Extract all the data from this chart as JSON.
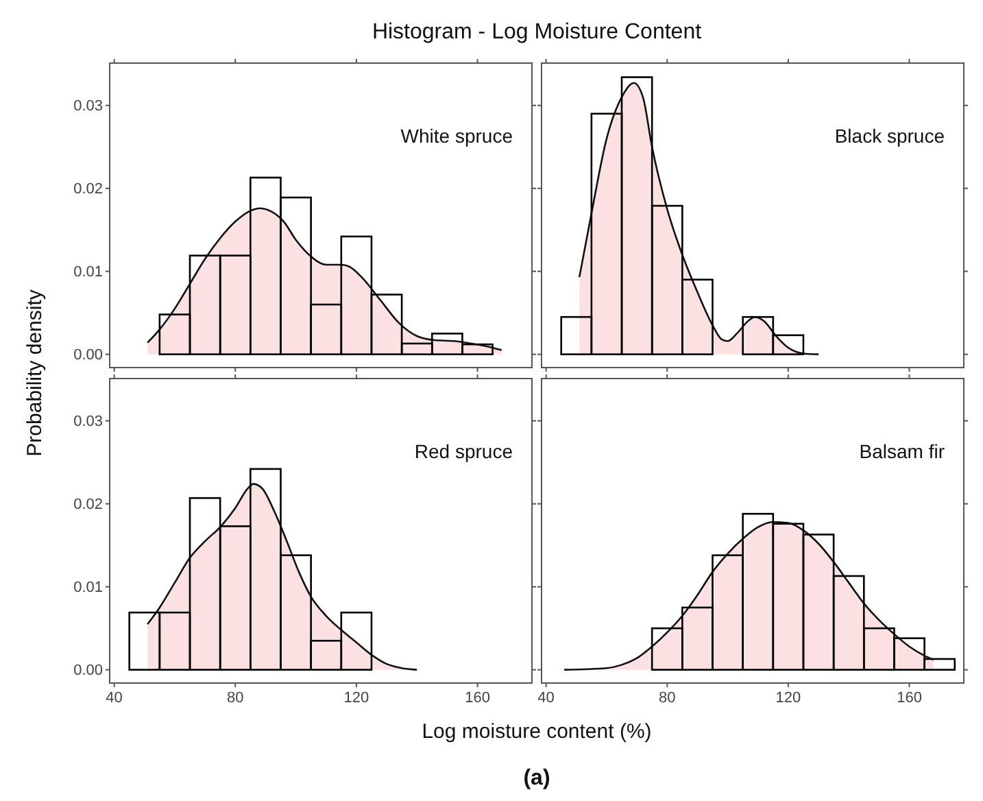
{
  "chart_data": [
    {
      "type": "histogram",
      "title": "Histogram - Log Moisture Content",
      "ylabel": "Probability density",
      "annotations": [
        "White spruce"
      ],
      "tick_labels": "y",
      "color": "#000000",
      "bins": [
        55,
        65,
        75,
        85,
        95,
        105,
        115,
        125,
        135,
        145,
        155,
        165
      ],
      "values": [
        0.0048,
        0.0119,
        0.0119,
        0.0213,
        0.0189,
        0.006,
        0.0142,
        0.0072,
        0.0013,
        0.0025,
        0.0012
      ],
      "series": [
        {
          "type": "area",
          "color": "#fbe1e1",
          "x": [
            51,
            55,
            60,
            65,
            70,
            75,
            80,
            85,
            88,
            92,
            96,
            100,
            105,
            110,
            115,
            118,
            122,
            128,
            134,
            140,
            146,
            152,
            158,
            165,
            168
          ],
          "values": [
            0.0014,
            0.003,
            0.0055,
            0.0085,
            0.0115,
            0.014,
            0.016,
            0.0173,
            0.0176,
            0.0172,
            0.016,
            0.0138,
            0.0118,
            0.0108,
            0.0108,
            0.0105,
            0.0092,
            0.0065,
            0.0038,
            0.0022,
            0.0017,
            0.0016,
            0.0013,
            0.0008,
            0.0005
          ]
        }
      ],
      "xlim": [
        38.5,
        178
      ],
      "ylim": [
        -0.0016,
        0.0351
      ],
      "xticks": [
        {
          "value": 40,
          "label": null
        },
        {
          "value": 80,
          "label": null
        },
        {
          "value": 120,
          "label": null
        },
        {
          "value": 160,
          "label": null
        }
      ],
      "yticks": [
        {
          "value": 0,
          "label": "0.00"
        },
        {
          "value": 0.01,
          "label": "0.01"
        },
        {
          "value": 0.02,
          "label": "0.02"
        },
        {
          "value": 0.03,
          "label": "0.03"
        }
      ],
      "grid": false
    },
    {
      "type": "histogram",
      "annotations": [
        "Black spruce"
      ],
      "tick_labels": false,
      "color": "#000000",
      "bins": [
        45,
        55,
        65,
        75,
        85,
        95,
        105,
        115,
        125
      ],
      "values": [
        0.0045,
        0.029,
        0.0334,
        0.0179,
        0.009,
        0,
        0.0045,
        0.0023
      ],
      "series": [
        {
          "type": "area",
          "color": "#fbe1e1",
          "x": [
            51,
            55,
            60,
            65,
            69,
            72,
            75,
            80,
            85,
            90,
            95,
            98,
            100,
            103,
            107,
            109,
            112,
            116,
            120,
            125,
            130
          ],
          "values": [
            0.0093,
            0.017,
            0.026,
            0.031,
            0.0327,
            0.031,
            0.025,
            0.0175,
            0.012,
            0.0075,
            0.0035,
            0.0018,
            0.0016,
            0.0025,
            0.0041,
            0.0045,
            0.004,
            0.0022,
            0.0008,
            0.0001,
            0
          ]
        }
      ],
      "xlim": [
        38.5,
        178
      ],
      "ylim": [
        -0.0016,
        0.0351
      ],
      "xticks": [
        {
          "value": 40,
          "label": null
        },
        {
          "value": 80,
          "label": null
        },
        {
          "value": 120,
          "label": null
        },
        {
          "value": 160,
          "label": null
        }
      ],
      "yticks": [
        {
          "value": 0,
          "label": null
        },
        {
          "value": 0.01,
          "label": null
        },
        {
          "value": 0.02,
          "label": null
        },
        {
          "value": 0.03,
          "label": null
        }
      ],
      "grid": false
    },
    {
      "type": "histogram",
      "annotations": [
        "Red spruce"
      ],
      "color": "#000000",
      "bins": [
        45,
        55,
        65,
        75,
        85,
        95,
        105,
        115,
        125
      ],
      "values": [
        0.0069,
        0.0069,
        0.0207,
        0.0173,
        0.0242,
        0.0138,
        0.0035,
        0.0069
      ],
      "series": [
        {
          "type": "area",
          "color": "#fbe1e1",
          "x": [
            51,
            55,
            60,
            65,
            70,
            75,
            80,
            84,
            86,
            89,
            93,
            97,
            101,
            105,
            110,
            115,
            120,
            125,
            130,
            135,
            140
          ],
          "values": [
            0.0055,
            0.0075,
            0.0105,
            0.0135,
            0.0155,
            0.0172,
            0.0195,
            0.0218,
            0.0224,
            0.0218,
            0.019,
            0.0155,
            0.0118,
            0.0088,
            0.0065,
            0.0048,
            0.0033,
            0.0018,
            0.0007,
            0.0002,
            0
          ]
        }
      ],
      "xlim": [
        38.5,
        178
      ],
      "ylim": [
        -0.0016,
        0.0351
      ],
      "xticks": [
        40,
        80,
        120,
        160
      ],
      "yticks": [
        {
          "value": 0,
          "label": "0.00"
        },
        {
          "value": 0.01,
          "label": "0.01"
        },
        {
          "value": 0.02,
          "label": "0.02"
        },
        {
          "value": 0.03,
          "label": "0.03"
        }
      ],
      "grid": false
    },
    {
      "type": "histogram",
      "xlabel": "Log moisture content (%)",
      "annotations": [
        "Balsam fir",
        "(a)"
      ],
      "tick_labels": "x",
      "color": "#000000",
      "bins": [
        75,
        85,
        95,
        105,
        115,
        125,
        135,
        145,
        155,
        165,
        175
      ],
      "values": [
        0.005,
        0.0075,
        0.0138,
        0.0188,
        0.0176,
        0.0163,
        0.0113,
        0.005,
        0.0038,
        0.0013
      ],
      "series": [
        {
          "type": "area",
          "color": "#fbe1e1",
          "x": [
            46,
            60,
            65,
            70,
            75,
            80,
            85,
            90,
            95,
            100,
            105,
            110,
            115,
            120,
            125,
            130,
            135,
            140,
            145,
            150,
            155,
            160,
            165,
            168
          ],
          "values": [
            0,
            0.0002,
            0.0006,
            0.0014,
            0.0028,
            0.0045,
            0.0065,
            0.009,
            0.0118,
            0.014,
            0.0158,
            0.0172,
            0.0178,
            0.0177,
            0.0168,
            0.0152,
            0.013,
            0.0105,
            0.008,
            0.006,
            0.0043,
            0.0028,
            0.0017,
            0.0012
          ]
        }
      ],
      "xlim": [
        38.5,
        178
      ],
      "ylim": [
        -0.0016,
        0.0351
      ],
      "xticks": [
        40,
        80,
        120,
        160
      ],
      "yticks": [
        {
          "value": 0,
          "label": null
        },
        {
          "value": 0.01,
          "label": null
        },
        {
          "value": 0.02,
          "label": null
        },
        {
          "value": 0.03,
          "label": null
        }
      ],
      "grid": false
    }
  ]
}
